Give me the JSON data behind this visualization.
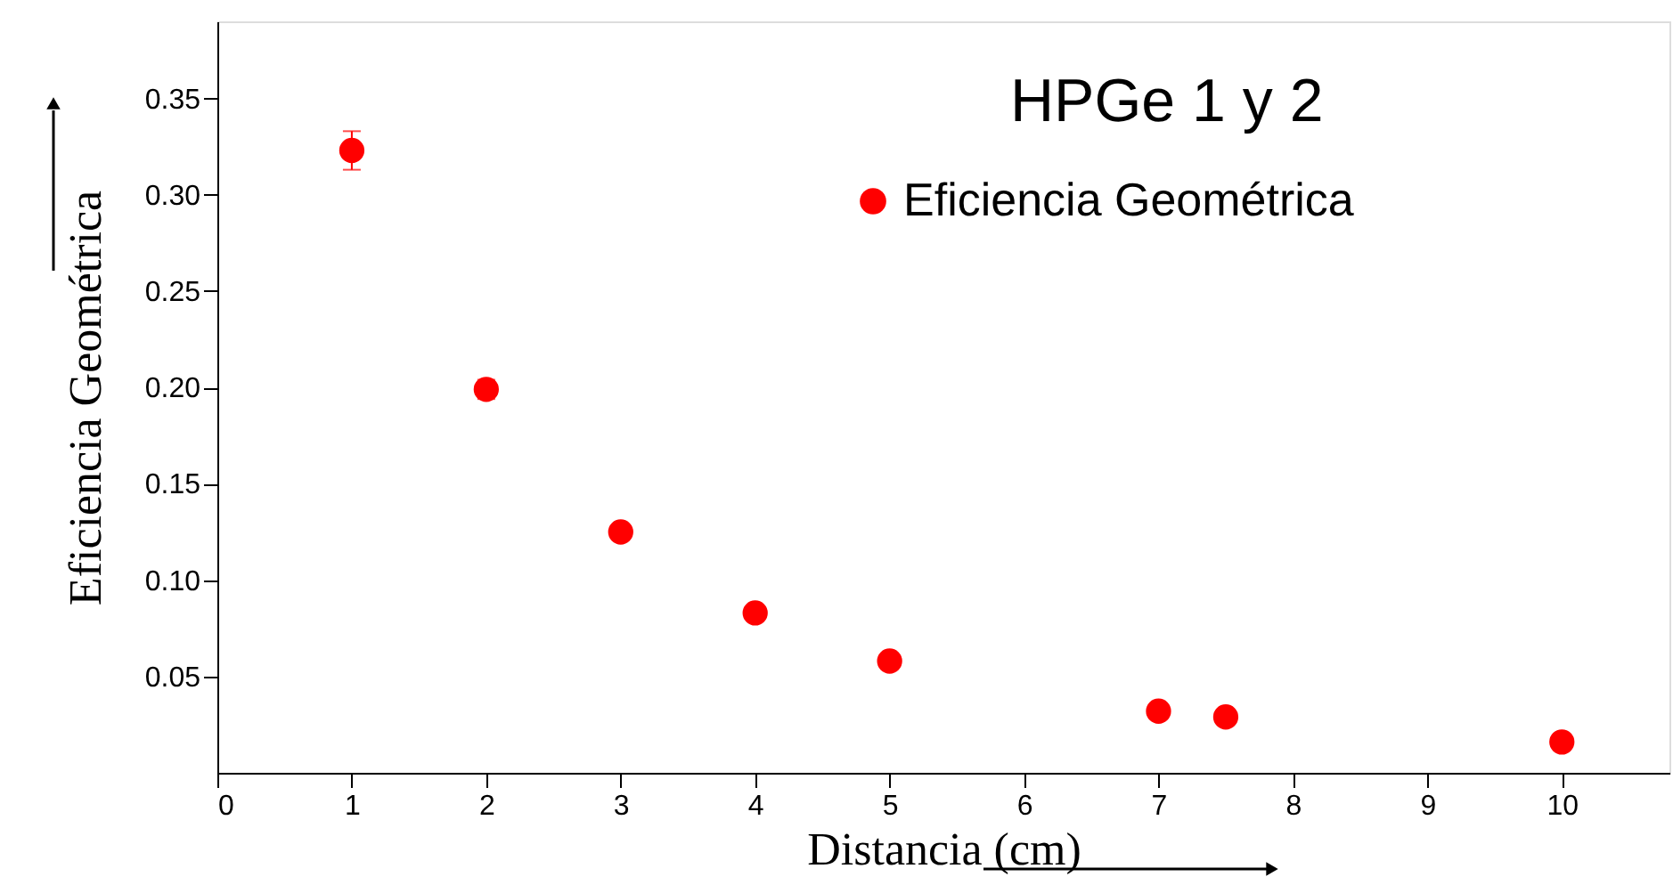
{
  "chart_data": {
    "type": "scatter",
    "title": "HPGe 1 y 2",
    "xlabel": "Distancia (cm)",
    "ylabel": "Eficiencia Geométrica",
    "x": [
      1,
      2,
      3,
      4,
      5,
      7,
      7.5,
      10
    ],
    "series": [
      {
        "name": "Eficiencia Geométrica",
        "color": "#ff0000",
        "values": [
          0.323,
          0.199,
          0.125,
          0.083,
          0.058,
          0.032,
          0.029,
          0.016
        ],
        "errors": [
          0.01,
          0.005,
          null,
          null,
          null,
          null,
          null,
          null
        ]
      }
    ],
    "xlim": [
      0,
      10.8
    ],
    "xticks": [
      0,
      1,
      2,
      3,
      4,
      5,
      6,
      7,
      8,
      9,
      10
    ],
    "ylim": [
      0,
      0.39
    ],
    "yticks": [
      0.05,
      {
        "value": 0.1,
        "label": "0.10"
      },
      0.15,
      {
        "value": 0.2,
        "label": "0.20"
      },
      0.25,
      {
        "value": 0.3,
        "label": "0.30"
      },
      0.35
    ],
    "grid": false,
    "legend": "top right",
    "marker": "circle"
  }
}
